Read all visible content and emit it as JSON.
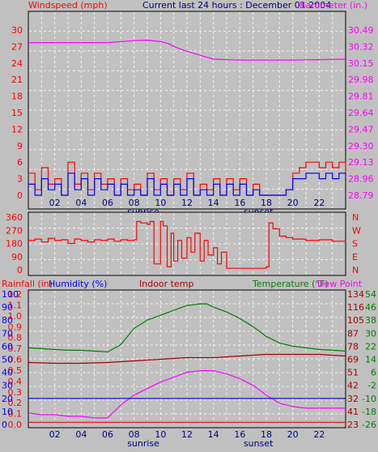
{
  "header": {
    "windspeed_label": "Windspeed (mph)",
    "title": "Current last 24 hours : December 01 2004",
    "barometer_label": "Barometer (in.)"
  },
  "bottom_header": {
    "rainfall_label": "Rainfall (in)",
    "humidity_label": "Humidity (%)",
    "indoor_label": "Indoor temp",
    "temperature_label": "Temperature (°F)",
    "dewpoint_label": "Dew Point"
  },
  "colors": {
    "background": "#c0c0c0",
    "wind_speed": "#ff0000",
    "wind_gust": "#0000ff",
    "barometer": "#ff00ff",
    "direction": "#ff0000",
    "humidity": "#0000ff",
    "indoor": "#aa0000",
    "temperature": "#008000",
    "dewpoint": "#ff00ff",
    "rainfall": "#0000ff"
  },
  "chart_data": [
    {
      "type": "line",
      "name": "wind-barometer",
      "x_tick_labels": [
        "02",
        "04",
        "06",
        "08",
        "10",
        "12",
        "14",
        "16",
        "18",
        "20",
        "22"
      ],
      "x_notes": [
        {
          "text": "sunrise",
          "x": 8.7
        },
        {
          "text": "sunset",
          "x": 17.4
        }
      ],
      "left_ticks": [
        "30",
        "27",
        "24",
        "21",
        "18",
        "15",
        "12",
        "9",
        "6",
        "3",
        "0"
      ],
      "right_ticks": [
        "30.49",
        "30.32",
        "30.15",
        "29.98",
        "29.81",
        "29.64",
        "29.47",
        "29.30",
        "29.13",
        "28.96",
        "28.79"
      ],
      "ylim_left": [
        0,
        30
      ],
      "ylim_right": [
        28.79,
        30.49
      ],
      "xlim": [
        0,
        24
      ],
      "barometer": {
        "x": [
          0,
          2,
          4,
          6,
          8,
          9,
          10,
          10.6,
          11,
          12,
          13,
          14,
          15,
          16,
          18,
          20,
          22,
          24
        ],
        "y": [
          30.36,
          30.36,
          30.36,
          30.36,
          30.38,
          30.385,
          30.37,
          30.35,
          30.32,
          30.27,
          30.23,
          30.19,
          30.185,
          30.18,
          30.18,
          30.18,
          30.185,
          30.19
        ]
      },
      "wind_speed": {
        "x": [
          0,
          0.5,
          1,
          1.5,
          2,
          2.5,
          3,
          3.5,
          4,
          4.5,
          5,
          5.5,
          6,
          6.5,
          7,
          7.5,
          8,
          8.5,
          9,
          9.5,
          10,
          10.5,
          11,
          11.5,
          12,
          12.5,
          13,
          13.5,
          14,
          14.5,
          15,
          15.5,
          16,
          16.5,
          17,
          17.5,
          18,
          18.5,
          19,
          19.5,
          20,
          20.5,
          21,
          21.5,
          22,
          22.5,
          23,
          23.5,
          24
        ],
        "y": [
          4,
          1,
          5,
          2,
          3,
          0,
          6,
          2,
          4,
          1,
          4,
          2,
          3,
          0,
          3,
          1,
          2,
          0,
          4,
          1,
          3,
          0,
          3,
          1,
          4,
          0,
          2,
          1,
          3,
          0,
          3,
          1,
          3,
          0,
          2,
          0,
          0,
          0,
          0,
          1,
          4,
          5,
          6,
          6,
          5,
          6,
          5,
          6,
          4
        ]
      },
      "wind_gust": {
        "x": [
          0,
          0.5,
          1,
          1.5,
          2,
          2.5,
          3,
          3.5,
          4,
          4.5,
          5,
          5.5,
          6,
          6.5,
          7,
          7.5,
          8,
          8.5,
          9,
          9.5,
          10,
          10.5,
          11,
          11.5,
          12,
          12.5,
          13,
          13.5,
          14,
          14.5,
          15,
          15.5,
          16,
          16.5,
          17,
          17.5,
          18,
          18.5,
          19,
          19.5,
          20,
          20.5,
          21,
          21.5,
          22,
          22.5,
          23,
          23.5,
          24
        ],
        "y": [
          2,
          0,
          3,
          1,
          2,
          0,
          4,
          1,
          3,
          0,
          3,
          1,
          2,
          0,
          2,
          0,
          1,
          0,
          3,
          0,
          2,
          0,
          2,
          0,
          3,
          0,
          1,
          0,
          2,
          0,
          2,
          0,
          2,
          0,
          1,
          0,
          0,
          0,
          0,
          1,
          3,
          3,
          4,
          4,
          3,
          4,
          3,
          4,
          3
        ]
      }
    },
    {
      "type": "line",
      "name": "wind-direction",
      "x_tick_labels": [
        "02",
        "04",
        "06",
        "08",
        "10",
        "12",
        "14",
        "16",
        "18",
        "20",
        "22"
      ],
      "left_ticks": [
        "360",
        "270",
        "180",
        "90",
        "0"
      ],
      "right_ticks": [
        "N",
        "W",
        "S",
        "E",
        "N"
      ],
      "ylim": [
        0,
        360
      ],
      "xlim": [
        0,
        24
      ],
      "direction": {
        "x": [
          0,
          0.5,
          1,
          1.5,
          2,
          2.5,
          3,
          3.5,
          4,
          4.5,
          5,
          5.5,
          6,
          6.5,
          7,
          7.5,
          8,
          8.2,
          8.5,
          9,
          9.2,
          9.5,
          10,
          10.2,
          10.5,
          10.8,
          11,
          11.3,
          11.6,
          12,
          12.3,
          12.6,
          13,
          13.3,
          13.6,
          14,
          14.3,
          14.6,
          15,
          15.5,
          16,
          16.5,
          17,
          17.5,
          18,
          18.2,
          18.5,
          19,
          19.5,
          20,
          21,
          22,
          23,
          24
        ],
        "y": [
          200,
          210,
          190,
          215,
          200,
          205,
          180,
          210,
          200,
          190,
          205,
          200,
          210,
          195,
          205,
          200,
          205,
          330,
          320,
          310,
          330,
          40,
          330,
          300,
          20,
          250,
          60,
          200,
          80,
          220,
          120,
          250,
          60,
          200,
          100,
          150,
          40,
          120,
          10,
          10,
          10,
          10,
          10,
          10,
          20,
          320,
          280,
          230,
          220,
          210,
          200,
          205,
          195,
          200
        ]
      }
    },
    {
      "type": "line",
      "name": "humidity-temperature",
      "x_tick_labels": [
        "02",
        "04",
        "06",
        "08",
        "10",
        "12",
        "14",
        "16",
        "18",
        "20",
        "22"
      ],
      "x_notes": [
        {
          "text": "sunrise",
          "x": 8.7
        },
        {
          "text": "sunset",
          "x": 17.4
        }
      ],
      "rain_ticks": [
        "1.2",
        "1.1",
        "1.0",
        "0.9",
        "0.8",
        "0.7",
        "0.6",
        "0.5",
        "0.4",
        "0.3",
        "0.2",
        "0.1",
        "0.0"
      ],
      "humidity_ticks": [
        "100",
        "90",
        "80",
        "70",
        "60",
        "50",
        "40",
        "30",
        "20",
        "10",
        "0"
      ],
      "temp_f_ticks": [
        "134",
        "116",
        "105",
        "87",
        "78",
        "69",
        "51",
        "42",
        "32",
        "41",
        "23"
      ],
      "temp_c_ticks": [
        "54",
        "46",
        "38",
        "30",
        "22",
        "14",
        "6",
        "-2",
        "-10",
        "-18",
        "-26"
      ],
      "ylim_temp_c": [
        -26,
        54
      ],
      "xlim": [
        0,
        24
      ],
      "temperature": {
        "x": [
          0,
          1,
          2,
          3,
          4,
          5,
          6,
          7,
          8,
          9,
          10,
          11,
          12,
          13,
          13.5,
          14,
          15,
          16,
          17,
          18,
          19,
          20,
          21,
          22,
          23,
          24
        ],
        "y": [
          21,
          20.5,
          20,
          19.5,
          19.5,
          19,
          18.5,
          23,
          33,
          38,
          41,
          44,
          47,
          48,
          48,
          46,
          43,
          39,
          34,
          28,
          24,
          22,
          21,
          20,
          19.5,
          19
        ]
      },
      "indoor": {
        "x": [
          0,
          2,
          4,
          6,
          8,
          10,
          12,
          14,
          16,
          18,
          20,
          22,
          24
        ],
        "y": [
          12,
          11.5,
          11.5,
          12,
          13,
          14,
          15,
          15,
          16,
          17,
          17,
          17,
          16
        ]
      },
      "dewpoint": {
        "x": [
          0,
          1,
          2,
          3,
          4,
          5,
          6,
          7,
          8,
          9,
          10,
          11,
          12,
          13,
          14,
          15,
          16,
          17,
          18,
          19,
          20,
          21,
          22,
          23,
          24
        ],
        "y": [
          -19,
          -20,
          -20,
          -21,
          -21,
          -22,
          -22,
          -14,
          -8,
          -4,
          0,
          3,
          6,
          7,
          7,
          5,
          2,
          -2,
          -8,
          -13,
          -15,
          -16,
          -16,
          -16,
          -16
        ]
      },
      "humidity": {
        "x": [
          0,
          24
        ],
        "y": [
          20,
          20
        ]
      },
      "rainfall": {
        "x": [
          0,
          24
        ],
        "y": [
          0.02,
          0.02
        ]
      }
    }
  ]
}
